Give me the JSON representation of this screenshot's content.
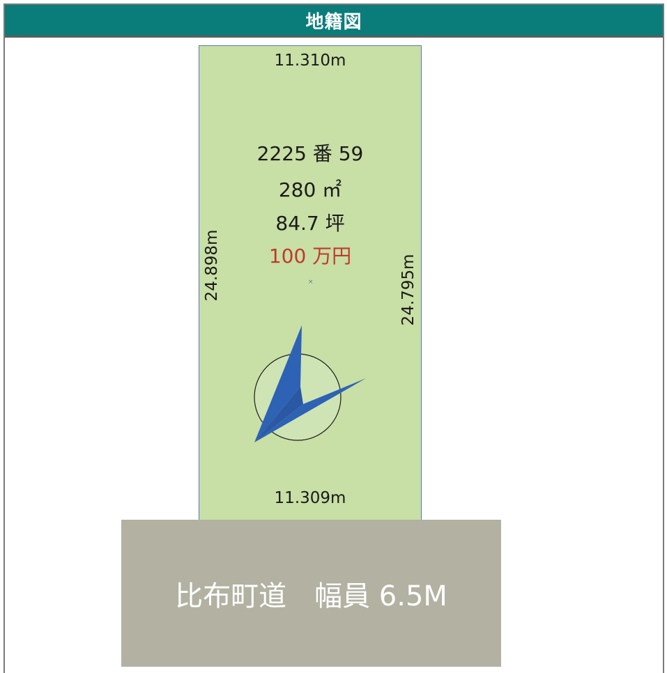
{
  "header": {
    "title": "地籍図"
  },
  "plot": {
    "dimensions": {
      "top": "11.310m",
      "bottom": "11.309m",
      "left": "24.898m",
      "right": "24.795m"
    },
    "lot_number": "2225 番 59",
    "area_sqm": "280 ㎡",
    "area_tsubo": "84.7 坪",
    "price": "100 万円",
    "center_mark": "×"
  },
  "road": {
    "label": "比布町道　幅員 6.5M"
  },
  "colors": {
    "header_bg": "#0a7d7a",
    "plot_fill": "#c8dfa5",
    "road_fill": "#b2b1a2",
    "price_text": "#c0392b",
    "compass_arrow": "#2e62b5"
  },
  "icons": {
    "compass": "north-arrow-icon"
  }
}
